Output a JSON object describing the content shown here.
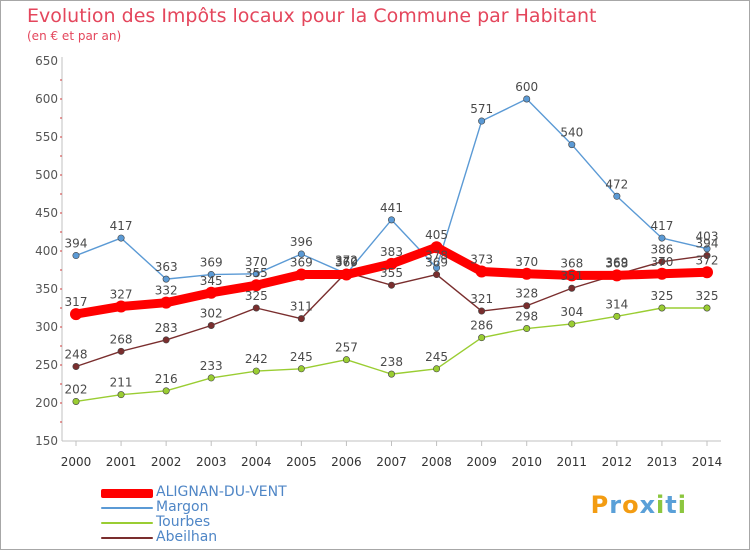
{
  "title": "Evolution des Impôts locaux pour la Commune par Habitant",
  "subtitle": "(en € et par an)",
  "brand": {
    "letters": [
      "P",
      "r",
      "o",
      "x",
      "i",
      "t",
      "i"
    ],
    "colors": [
      "#f39c12",
      "#5aa0d8",
      "#f39c12",
      "#5aa0d8",
      "#8cc63f",
      "#5aa0d8",
      "#8cc63f"
    ]
  },
  "chart_data": {
    "type": "line",
    "title": "Evolution des Impôts locaux pour la Commune par Habitant",
    "subtitle": "(en € et par an)",
    "x": [
      "2000",
      "2001",
      "2002",
      "2003",
      "2004",
      "2005",
      "2006",
      "2007",
      "2008",
      "2009",
      "2010",
      "2011",
      "2012",
      "2013",
      "2014"
    ],
    "ylim": [
      150,
      650
    ],
    "yticks": [
      150,
      200,
      250,
      300,
      350,
      400,
      450,
      500,
      550,
      600,
      650
    ],
    "grid": false,
    "legend_position": "bottom-left",
    "series": [
      {
        "name": "ALIGNAN-DU-VENT",
        "color": "#ff0000",
        "values": [
          317,
          327,
          332,
          345,
          355,
          369,
          369,
          383,
          405,
          373,
          370,
          368,
          368,
          370,
          372
        ],
        "labels": [
          "317",
          "327",
          "332",
          "345",
          "355",
          "369",
          "369",
          "383",
          "405",
          "373",
          "370",
          "368",
          "368",
          "370",
          "372"
        ]
      },
      {
        "name": "Margon",
        "color": "#5b9ad5",
        "values": [
          394,
          417,
          363,
          369,
          370,
          396,
          370,
          441,
          378,
          571,
          600,
          540,
          472,
          417,
          403
        ],
        "labels": [
          "394",
          "417",
          "363",
          "369",
          "370",
          "396",
          "370",
          "441",
          "378",
          "571",
          "600",
          "540",
          "472",
          "417",
          "403"
        ]
      },
      {
        "name": "Tourbes",
        "color": "#9acd32",
        "values": [
          202,
          211,
          216,
          233,
          242,
          245,
          257,
          238,
          245,
          286,
          298,
          304,
          314,
          325,
          325
        ],
        "labels": [
          "202",
          "211",
          "216",
          "233",
          "242",
          "245",
          "257",
          "238",
          "245",
          "286",
          "298",
          "304",
          "314",
          "325",
          "325"
        ]
      },
      {
        "name": "Abeilhan",
        "color": "#7a2e2e",
        "values": [
          248,
          268,
          283,
          302,
          325,
          311,
          372,
          355,
          369,
          321,
          328,
          351,
          369,
          386,
          394
        ],
        "labels": [
          "248",
          "268",
          "283",
          "302",
          "325",
          "311",
          "372",
          "355",
          "369",
          "321",
          "328",
          "351",
          "369",
          "386",
          "394"
        ]
      }
    ]
  }
}
